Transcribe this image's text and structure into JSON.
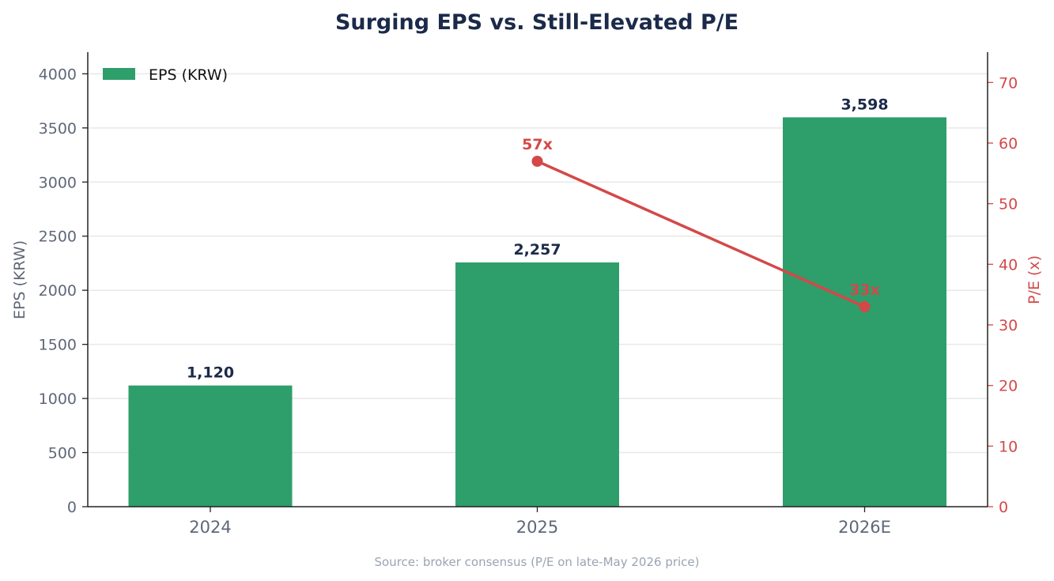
{
  "chart_data": {
    "type": "bar",
    "title": "Surging EPS vs. Still-Elevated P/E",
    "categories": [
      "2024",
      "2025",
      "2026E"
    ],
    "series": [
      {
        "name": "EPS (KRW)",
        "type": "bar",
        "axis": "left",
        "values": [
          1120,
          2257,
          3598
        ],
        "value_labels": [
          "1,120",
          "2,257",
          "3,598"
        ],
        "color": "#2e9e6b"
      },
      {
        "type": "line",
        "axis": "right",
        "values": [
          null,
          57,
          33
        ],
        "value_labels": [
          "",
          "57x",
          "33x"
        ],
        "color": "#d44848"
      }
    ],
    "ylabel": "EPS (KRW)",
    "y2label": "P/E (x)",
    "ylim": [
      0,
      4200
    ],
    "yticks": [
      0,
      500,
      1000,
      1500,
      2000,
      2500,
      3000,
      3500,
      4000
    ],
    "y2lim": [
      0,
      75
    ],
    "y2ticks": [
      0,
      10,
      20,
      30,
      40,
      50,
      60,
      70
    ],
    "grid": true,
    "legend": "top-left",
    "source": "Source: broker consensus (P/E on late-May 2026 price)"
  },
  "colors": {
    "title": "#1b2a4a",
    "bar": "#2e9e6b",
    "line": "#d44848",
    "axis_text": "#5f6778",
    "grid": "#e8e8e8",
    "source": "#9aa4b2"
  }
}
